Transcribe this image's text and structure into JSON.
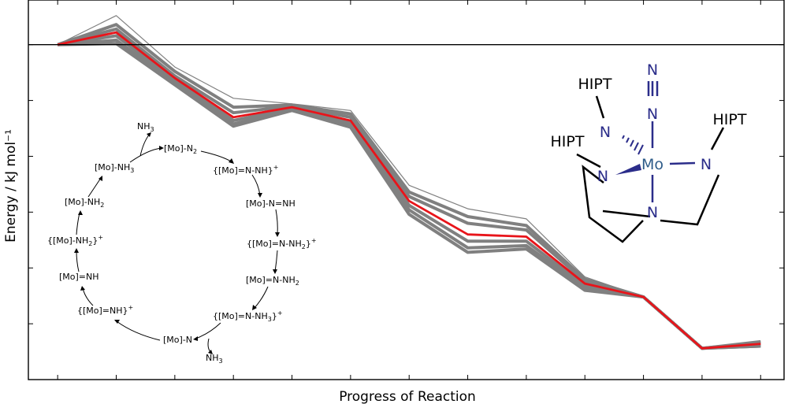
{
  "chart_data": {
    "type": "line",
    "xlabel": "Progress of Reaction",
    "ylabel": "Energy / kJ mol⁻¹",
    "x": [
      0,
      1,
      2,
      3,
      4,
      5,
      6,
      7,
      8,
      9,
      10,
      11,
      12
    ],
    "ylim": [
      -150,
      20
    ],
    "xlim": [
      -0.5,
      12.4
    ],
    "reference_line": 0,
    "highlight_series": {
      "color": "#e8141a",
      "values": [
        0,
        5.5,
        -15,
        -32.5,
        -28,
        -34,
        -70,
        -85,
        -86,
        -107,
        -113,
        -136,
        -134
      ]
    },
    "background_series": {
      "color": "#808080",
      "series": [
        {
          "values": [
            0,
            13,
            -10,
            -24,
            -26.5,
            -29.5,
            -63,
            -73.5,
            -78,
            -104,
            -113,
            -136,
            -133
          ]
        },
        {
          "values": [
            0,
            9,
            -12,
            -28,
            -27,
            -31,
            -66,
            -77,
            -81,
            -105,
            -113,
            -136,
            -133
          ]
        },
        {
          "values": [
            0,
            7,
            -14,
            -30.5,
            -27.5,
            -32.5,
            -68,
            -80,
            -83,
            -106,
            -113,
            -136,
            -133.5
          ]
        },
        {
          "values": [
            0,
            4,
            -16,
            -34,
            -28.5,
            -35,
            -72,
            -88,
            -88,
            -108,
            -113,
            -136,
            -134.5
          ]
        },
        {
          "values": [
            0,
            2,
            -17,
            -35.5,
            -29,
            -36,
            -74,
            -91,
            -90,
            -109,
            -113,
            -136,
            -135
          ]
        },
        {
          "values": [
            0,
            0.5,
            -18,
            -36.5,
            -29.5,
            -37,
            -76,
            -93,
            -91.5,
            -110,
            -113,
            -136,
            -135
          ]
        }
      ]
    }
  },
  "scheme": {
    "color": "#000000",
    "steps": [
      {
        "prefix": "[Mo]-N",
        "sub": "2",
        "suffix": "",
        "sup": ""
      },
      {
        "prefix": "{[Mo]=N-NH}",
        "sub": "",
        "suffix": "",
        "sup": "+"
      },
      {
        "prefix": "[Mo]-N=NH",
        "sub": "",
        "suffix": "",
        "sup": ""
      },
      {
        "prefix": "{[Mo]=N-NH",
        "sub": "2",
        "suffix": "}",
        "sup": "+"
      },
      {
        "prefix": "[Mo]=N-NH",
        "sub": "2",
        "suffix": "",
        "sup": ""
      },
      {
        "prefix": "{[Mo]=N-NH",
        "sub": "3",
        "suffix": "}",
        "sup": "+"
      },
      {
        "prefix": "[Mo]-N",
        "sub": "",
        "suffix": "",
        "sup": ""
      },
      {
        "prefix": "{[Mo]=NH}",
        "sub": "",
        "suffix": "",
        "sup": "+"
      },
      {
        "prefix": "[Mo]=NH",
        "sub": "",
        "suffix": "",
        "sup": ""
      },
      {
        "prefix": "{[Mo]-NH",
        "sub": "2",
        "suffix": "}",
        "sup": "+"
      },
      {
        "prefix": "[Mo]-NH",
        "sub": "2",
        "suffix": "",
        "sup": ""
      },
      {
        "prefix": "[Mo]-NH",
        "sub": "3",
        "suffix": "",
        "sup": ""
      }
    ],
    "byproducts": [
      {
        "prefix": "NH",
        "sub": "3"
      },
      {
        "prefix": "NH",
        "sub": "3"
      }
    ]
  },
  "molecule": {
    "bond_color_blue": "#2b2d8a",
    "bond_color_black": "#000000",
    "mo_color": "#2e5c8a",
    "metal": "Mo",
    "n_label": "N",
    "hipt_label": "HIPT"
  }
}
